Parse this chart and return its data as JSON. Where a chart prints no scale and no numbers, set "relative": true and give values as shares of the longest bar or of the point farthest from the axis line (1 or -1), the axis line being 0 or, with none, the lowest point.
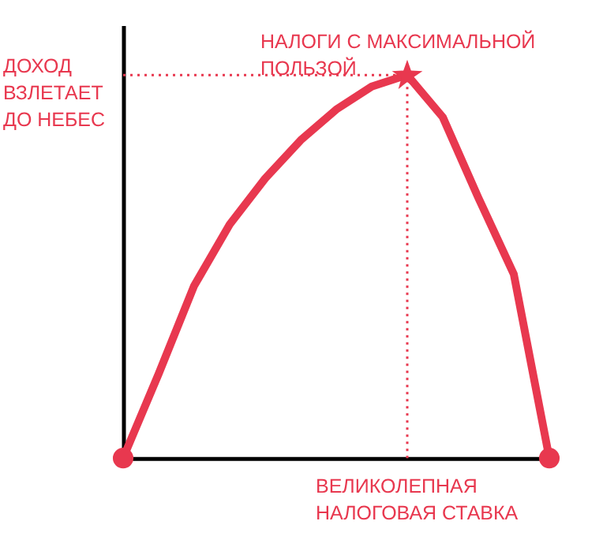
{
  "chart_data": {
    "type": "line",
    "relative": true,
    "ylabel": "ДОХОД\nВЗЛЕТАЕТ\nДО НЕБЕС",
    "xlabel": "ВЕЛИКОЛЕПНАЯ\nНАЛОГОВАЯ СТАВКА",
    "categories": [
      null,
      null,
      null,
      null,
      null,
      null,
      null,
      null,
      null,
      null,
      null,
      null,
      null
    ],
    "series": [
      {
        "color": "#e8384f",
        "values": [
          0,
          0.22,
          0.45,
          0.61,
          0.73,
          0.83,
          0.91,
          0.97,
          1,
          0.89,
          0.68,
          0.48,
          0
        ]
      }
    ],
    "annotations": [
      "НАЛОГИ С МАКСИМАЛЬНОЙ\nПОЛЬЗОЙ"
    ],
    "ref_lines": [
      {
        "axis": "y",
        "value": 1,
        "label": null,
        "color": "#e8384f",
        "line_style": "dotted"
      }
    ],
    "tick_labels": false,
    "grid": false
  }
}
